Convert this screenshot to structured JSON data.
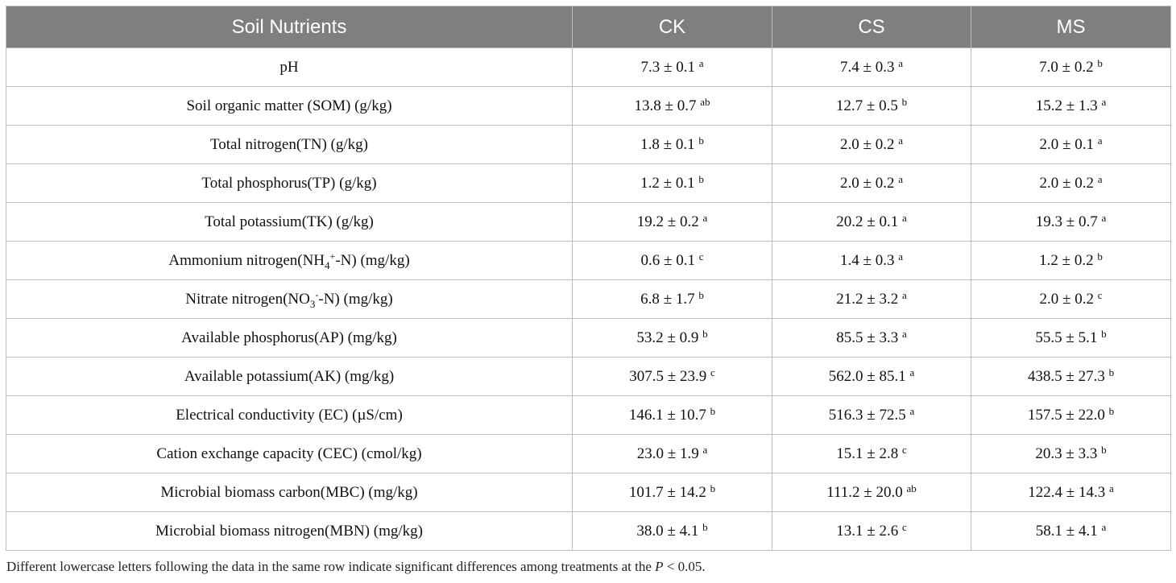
{
  "table": {
    "headers": [
      "Soil Nutrients",
      "CK",
      "CS",
      "MS"
    ],
    "rows": [
      {
        "label": "pH",
        "cells": [
          {
            "v": "7.3 ± 0.1",
            "s": "a"
          },
          {
            "v": "7.4 ± 0.3",
            "s": "a"
          },
          {
            "v": "7.0 ± 0.2",
            "s": "b"
          }
        ]
      },
      {
        "label": "Soil organic matter (SOM) (g/kg)",
        "cells": [
          {
            "v": "13.8 ± 0.7",
            "s": "ab"
          },
          {
            "v": "12.7 ± 0.5",
            "s": "b"
          },
          {
            "v": "15.2 ± 1.3",
            "s": "a"
          }
        ]
      },
      {
        "label": "Total nitrogen(TN) (g/kg)",
        "cells": [
          {
            "v": "1.8 ± 0.1",
            "s": "b"
          },
          {
            "v": "2.0 ± 0.2",
            "s": "a"
          },
          {
            "v": "2.0 ± 0.1",
            "s": "a"
          }
        ]
      },
      {
        "label": "Total phosphorus(TP) (g/kg)",
        "cells": [
          {
            "v": "1.2 ± 0.1",
            "s": "b"
          },
          {
            "v": "2.0 ± 0.2",
            "s": "a"
          },
          {
            "v": "2.0 ± 0.2",
            "s": "a"
          }
        ]
      },
      {
        "label": "Total potassium(TK) (g/kg)",
        "cells": [
          {
            "v": "19.2 ± 0.2",
            "s": "a"
          },
          {
            "v": "20.2 ± 0.1",
            "s": "a"
          },
          {
            "v": "19.3 ± 0.7",
            "s": "a"
          }
        ]
      },
      {
        "label_parts": {
          "pre": "Ammonium nitrogen(NH",
          "sub": "4",
          "sup": "+",
          "post": "-N) (mg/kg)"
        },
        "cells": [
          {
            "v": "0.6 ± 0.1",
            "s": "c"
          },
          {
            "v": "1.4 ± 0.3",
            "s": "a"
          },
          {
            "v": "1.2 ± 0.2",
            "s": "b"
          }
        ]
      },
      {
        "label_parts": {
          "pre": "Nitrate nitrogen(NO",
          "sub": "3",
          "sup": "-",
          "post": "-N) (mg/kg)"
        },
        "cells": [
          {
            "v": "6.8 ± 1.7",
            "s": "b"
          },
          {
            "v": "21.2 ± 3.2",
            "s": "a"
          },
          {
            "v": "2.0 ± 0.2",
            "s": "c"
          }
        ]
      },
      {
        "label": "Available phosphorus(AP) (mg/kg)",
        "cells": [
          {
            "v": "53.2 ± 0.9",
            "s": "b"
          },
          {
            "v": "85.5 ± 3.3",
            "s": "a"
          },
          {
            "v": "55.5 ± 5.1",
            "s": "b"
          }
        ]
      },
      {
        "label": "Available potassium(AK) (mg/kg)",
        "cells": [
          {
            "v": "307.5 ± 23.9",
            "s": "c"
          },
          {
            "v": "562.0 ± 85.1",
            "s": "a"
          },
          {
            "v": "438.5 ± 27.3",
            "s": "b"
          }
        ]
      },
      {
        "label": "Electrical conductivity (EC) (µS/cm)",
        "cells": [
          {
            "v": "146.1 ± 10.7",
            "s": "b"
          },
          {
            "v": "516.3 ± 72.5",
            "s": "a"
          },
          {
            "v": "157.5 ± 22.0",
            "s": "b"
          }
        ]
      },
      {
        "label": "Cation exchange capacity (CEC) (cmol/kg)",
        "cells": [
          {
            "v": "23.0 ± 1.9",
            "s": "a"
          },
          {
            "v": "15.1 ± 2.8",
            "s": "c"
          },
          {
            "v": "20.3 ± 3.3",
            "s": "b"
          }
        ]
      },
      {
        "label": "Microbial biomass carbon(MBC) (mg/kg)",
        "cells": [
          {
            "v": "101.7 ± 14.2",
            "s": "b"
          },
          {
            "v": "111.2 ± 20.0",
            "s": "ab"
          },
          {
            "v": "122.4 ± 14.3",
            "s": "a"
          }
        ]
      },
      {
        "label": "Microbial biomass nitrogen(MBN) (mg/kg)",
        "cells": [
          {
            "v": "38.0 ± 4.1",
            "s": "b"
          },
          {
            "v": "13.1 ± 2.6",
            "s": "c"
          },
          {
            "v": "58.1 ± 4.1",
            "s": "a"
          }
        ]
      }
    ]
  },
  "footnote": {
    "pre": "Different lowercase letters following the data in the same row indicate significant differences among treatments at the ",
    "italic": "P",
    "post": " < 0.05."
  },
  "colors": {
    "header_bg": "#7f7f7e",
    "border": "#bdbdbd"
  }
}
